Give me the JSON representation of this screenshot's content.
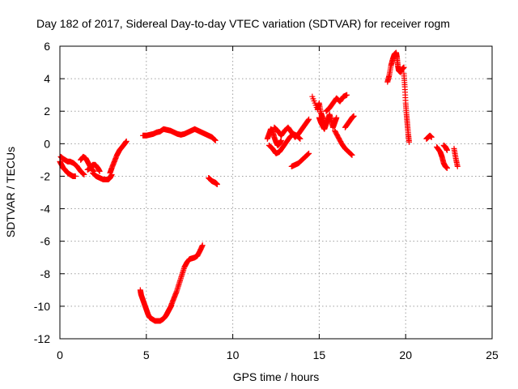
{
  "chart_data": {
    "type": "scatter",
    "title": "Day 182 of 2017, Sidereal Day-to-day VTEC variation (SDTVAR) for receiver rogm",
    "xlabel": "GPS time / hours",
    "ylabel": "SDTVAR / TECUs",
    "xlim": [
      0,
      25
    ],
    "ylim": [
      -12,
      6
    ],
    "xticks": [
      0,
      5,
      10,
      15,
      20,
      25
    ],
    "yticks": [
      -12,
      -10,
      -8,
      -6,
      -4,
      -2,
      0,
      2,
      4,
      6
    ],
    "grid": true,
    "marker": "+",
    "series_color": "#ff0000",
    "series": [
      {
        "name": "SDTVAR",
        "traces": [
          {
            "x": [
              0.0,
              0.1,
              0.2,
              0.3,
              0.45,
              0.6,
              0.75,
              0.9
            ],
            "y": [
              -1.1,
              -1.3,
              -1.5,
              -1.6,
              -1.8,
              -1.9,
              -2.0,
              -2.0
            ]
          },
          {
            "x": [
              0.05,
              0.15,
              0.3,
              0.45,
              0.6,
              0.8,
              1.0,
              1.2,
              1.4
            ],
            "y": [
              -0.8,
              -0.9,
              -1.0,
              -1.1,
              -1.1,
              -1.2,
              -1.4,
              -1.7,
              -1.9
            ]
          },
          {
            "x": [
              1.2,
              1.35,
              1.5,
              1.65,
              1.8,
              1.95
            ],
            "y": [
              -1.0,
              -0.8,
              -0.9,
              -1.2,
              -1.5,
              -1.7
            ]
          },
          {
            "x": [
              1.6,
              1.75,
              1.9,
              2.05,
              2.2,
              2.3
            ],
            "y": [
              -1.6,
              -1.5,
              -1.3,
              -1.3,
              -1.5,
              -1.7
            ]
          },
          {
            "x": [
              1.9,
              2.1,
              2.3,
              2.5,
              2.65,
              2.8,
              2.9,
              3.0
            ],
            "y": [
              -1.8,
              -2.0,
              -2.1,
              -2.2,
              -2.2,
              -2.2,
              -2.1,
              -1.9
            ]
          },
          {
            "x": [
              2.9,
              3.0,
              3.15,
              3.3,
              3.45,
              3.6,
              3.75,
              3.85
            ],
            "y": [
              -1.8,
              -1.5,
              -1.1,
              -0.7,
              -0.4,
              -0.2,
              0.0,
              0.15
            ]
          },
          {
            "x": [
              4.8,
              5.0,
              5.2,
              5.4,
              5.6,
              5.8,
              6.0,
              6.2,
              6.4,
              6.6,
              6.8,
              7.0
            ],
            "y": [
              0.5,
              0.5,
              0.55,
              0.6,
              0.7,
              0.75,
              0.9,
              0.85,
              0.8,
              0.7,
              0.6,
              0.55
            ]
          },
          {
            "x": [
              7.0,
              7.2,
              7.4,
              7.6,
              7.8,
              8.0,
              8.2,
              8.4,
              8.6,
              8.8,
              9.0
            ],
            "y": [
              0.55,
              0.6,
              0.7,
              0.8,
              0.9,
              0.8,
              0.7,
              0.6,
              0.5,
              0.4,
              0.2
            ]
          },
          {
            "x": [
              8.6,
              8.7,
              8.8,
              8.9,
              9.0,
              9.1
            ],
            "y": [
              -2.1,
              -2.2,
              -2.3,
              -2.35,
              -2.4,
              -2.5
            ]
          },
          {
            "x": [
              4.65,
              4.7,
              4.8,
              4.9,
              5.0,
              5.1,
              5.2,
              5.35,
              5.5,
              5.65,
              5.8,
              5.95,
              6.05,
              6.15,
              6.25,
              6.35,
              6.45
            ],
            "y": [
              -9.0,
              -9.3,
              -9.6,
              -9.9,
              -10.2,
              -10.5,
              -10.7,
              -10.8,
              -10.9,
              -10.9,
              -10.9,
              -10.8,
              -10.7,
              -10.55,
              -10.35,
              -10.15,
              -9.95
            ]
          },
          {
            "x": [
              6.45,
              6.6,
              6.75,
              6.9,
              7.05,
              7.2,
              7.35,
              7.5,
              7.65,
              7.8,
              7.95,
              8.1,
              8.25
            ],
            "y": [
              -9.9,
              -9.5,
              -9.1,
              -8.6,
              -8.1,
              -7.6,
              -7.3,
              -7.1,
              -7.05,
              -7.0,
              -6.9,
              -6.6,
              -6.25
            ]
          },
          {
            "x": [
              12.0,
              12.1,
              12.2,
              12.3,
              12.4,
              12.5,
              12.6,
              12.7,
              12.8
            ],
            "y": [
              0.3,
              0.6,
              0.9,
              0.8,
              0.4,
              0.1,
              -0.1,
              0.0,
              0.2
            ]
          },
          {
            "x": [
              12.1,
              12.3,
              12.5,
              12.7,
              12.9,
              13.1,
              13.3,
              13.5,
              13.7,
              13.9
            ],
            "y": [
              -0.1,
              -0.3,
              -0.6,
              -0.5,
              -0.2,
              0.1,
              0.4,
              0.6,
              0.5,
              0.3
            ]
          },
          {
            "x": [
              12.4,
              12.6,
              12.8,
              13.0,
              13.2,
              13.4,
              13.6,
              13.8,
              14.0,
              14.2,
              14.4
            ],
            "y": [
              1.0,
              0.8,
              0.5,
              0.8,
              1.0,
              0.7,
              0.4,
              0.6,
              0.9,
              1.2,
              1.5
            ]
          },
          {
            "x": [
              13.4,
              13.6,
              13.8,
              14.0,
              14.2,
              14.4
            ],
            "y": [
              -1.4,
              -1.3,
              -1.2,
              -1.0,
              -0.8,
              -0.6
            ]
          },
          {
            "x": [
              14.6,
              14.9,
              15.0,
              15.1,
              15.2,
              15.3
            ],
            "y": [
              2.9,
              2.1,
              2.5,
              1.9,
              1.6,
              1.2
            ]
          },
          {
            "x": [
              15.0,
              15.1,
              15.2,
              15.3,
              15.4,
              15.5,
              15.6,
              15.7,
              15.8,
              15.9,
              16.0
            ],
            "y": [
              1.6,
              1.3,
              1.1,
              0.9,
              1.2,
              1.5,
              1.8,
              1.4,
              1.0,
              1.3,
              1.6
            ]
          },
          {
            "x": [
              15.4,
              15.6,
              15.8,
              16.0,
              16.2,
              16.4,
              16.6
            ],
            "y": [
              2.0,
              2.2,
              2.5,
              2.8,
              2.6,
              2.9,
              3.0
            ]
          },
          {
            "x": [
              15.9,
              16.1,
              16.3,
              16.5,
              16.7,
              16.9
            ],
            "y": [
              0.8,
              0.4,
              0.0,
              -0.3,
              -0.5,
              -0.7
            ]
          },
          {
            "x": [
              16.5,
              16.7,
              16.9,
              17.0
            ],
            "y": [
              1.0,
              1.3,
              1.6,
              1.7
            ]
          },
          {
            "x": [
              18.95,
              19.05,
              19.15,
              19.25,
              19.35,
              19.45,
              19.5,
              19.55,
              19.6,
              19.7,
              19.8,
              19.9
            ],
            "y": [
              3.8,
              4.2,
              4.8,
              5.2,
              5.5,
              5.6,
              5.3,
              4.8,
              4.5,
              4.4,
              4.6,
              4.7
            ]
          },
          {
            "x": [
              19.9,
              19.95,
              20.0,
              20.05,
              20.1,
              20.15,
              20.2
            ],
            "y": [
              4.3,
              3.5,
              2.5,
              1.8,
              1.2,
              0.6,
              0.1
            ]
          },
          {
            "x": [
              21.2,
              21.3,
              21.4,
              21.5
            ],
            "y": [
              0.3,
              0.4,
              0.5,
              0.4
            ]
          },
          {
            "x": [
              21.8,
              22.0,
              22.1,
              22.2,
              22.3,
              22.4
            ],
            "y": [
              -0.2,
              -0.5,
              -0.8,
              -1.2,
              -1.4,
              -1.5
            ]
          },
          {
            "x": [
              22.2,
              22.3,
              22.4
            ],
            "y": [
              -0.1,
              -0.2,
              -0.4
            ]
          },
          {
            "x": [
              22.8,
              22.9,
              23.0
            ],
            "y": [
              -0.3,
              -0.9,
              -1.4
            ]
          }
        ]
      }
    ]
  }
}
